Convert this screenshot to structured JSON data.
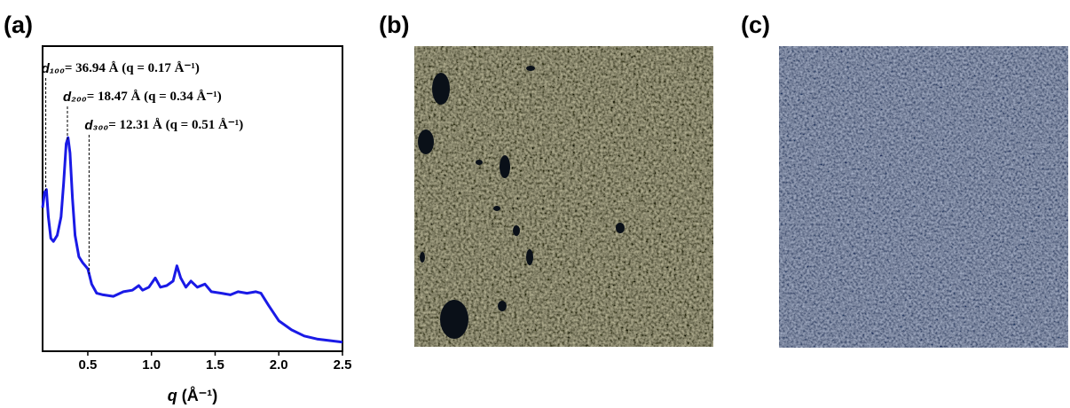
{
  "panels": {
    "a": "(a)",
    "b": "(b)",
    "c": "(c)"
  },
  "chart_data": {
    "type": "line",
    "xlabel": {
      "symbol": "q",
      "unit": "(Å⁻¹)"
    },
    "xlim": [
      0.145,
      2.5
    ],
    "xticks": [
      0.5,
      {
        "value": 1,
        "label": "1.0"
      },
      1.5,
      {
        "value": 2,
        "label": "2.0"
      },
      2.5
    ],
    "ylim": [
      0,
      100
    ],
    "x": [
      0.145,
      0.16,
      0.175,
      0.19,
      0.21,
      0.23,
      0.26,
      0.29,
      0.31,
      0.33,
      0.345,
      0.36,
      0.38,
      0.4,
      0.43,
      0.46,
      0.5,
      0.53,
      0.57,
      0.62,
      0.7,
      0.78,
      0.85,
      0.9,
      0.93,
      0.98,
      1.03,
      1.07,
      1.12,
      1.17,
      1.2,
      1.23,
      1.27,
      1.31,
      1.36,
      1.42,
      1.47,
      1.55,
      1.62,
      1.68,
      1.75,
      1.82,
      1.86,
      1.92,
      2.0,
      2.1,
      2.2,
      2.3,
      2.4,
      2.5
    ],
    "series": [
      {
        "color": "#1a1ae6",
        "values": [
          47,
          52,
          53,
          44,
          37,
          36,
          38,
          44,
          55,
          68,
          70,
          65,
          50,
          38,
          31,
          29,
          27,
          22,
          19,
          18.5,
          18,
          19.5,
          20,
          21.5,
          20,
          21,
          24,
          21,
          21.5,
          23,
          28,
          24,
          21,
          23,
          21,
          22,
          19.5,
          19,
          18.5,
          19.5,
          19,
          19.5,
          19,
          15,
          10,
          7,
          5,
          4,
          3.5,
          3
        ]
      }
    ],
    "annotations": [
      {
        "x": 0.17,
        "symbol": "d₁₀₀",
        "text": "= 36.94 Å (q = 0.17 Å⁻¹)"
      },
      {
        "x": 0.34,
        "symbol": "d₂₀₀",
        "text": "= 18.47 Å (q = 0.34 Å⁻¹)"
      },
      {
        "x": 0.51,
        "symbol": "d₃₀₀",
        "text": "= 12.31 Å (q = 0.51 Å⁻¹)"
      }
    ]
  }
}
